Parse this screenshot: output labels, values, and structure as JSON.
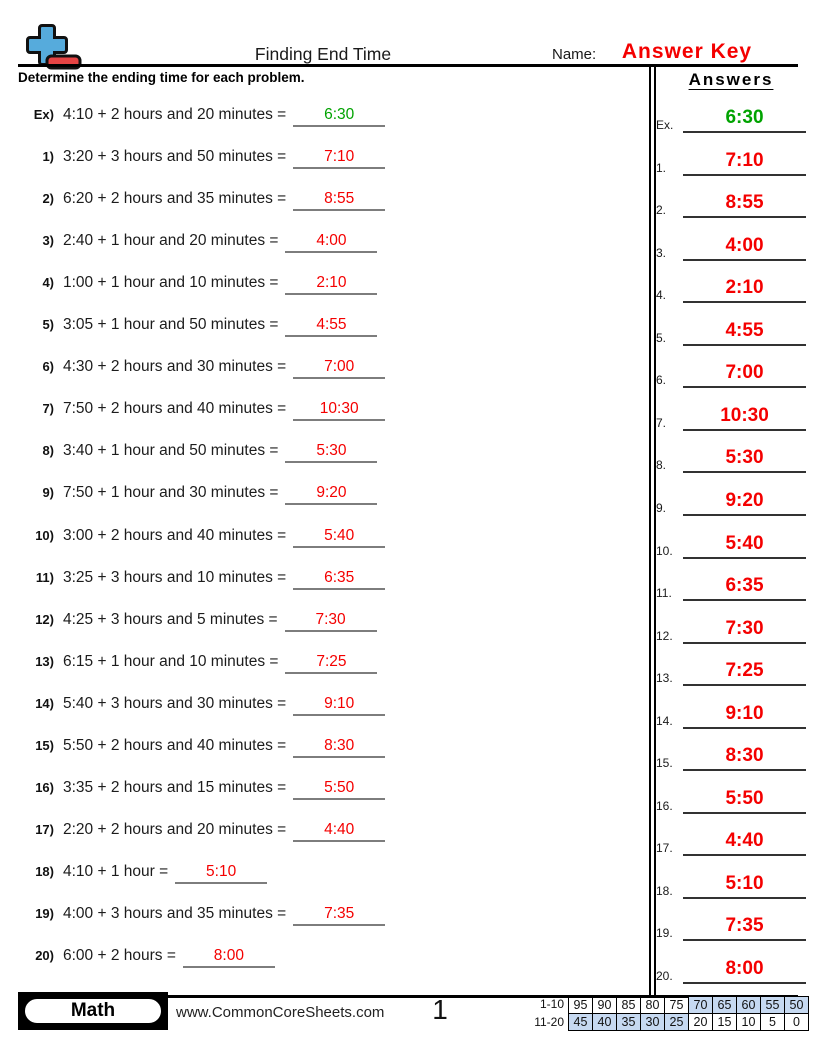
{
  "header": {
    "title": "Finding End Time",
    "name_label": "Name:",
    "name_value": "Answer Key",
    "instruction": "Determine the ending time for each problem.",
    "answers_title": "Answers"
  },
  "colors": {
    "answer_red": "#f40000",
    "answer_green": "#00a300",
    "name_value_red": "#f40000",
    "score_highlight_blue": "#c6d9f1",
    "logo_blue": "#56abdc",
    "logo_red": "#e64444"
  },
  "problems": [
    {
      "num": "Ex)",
      "key": "Ex.",
      "text": "4:10 + 2 hours and 20 minutes =",
      "answer": "6:30",
      "color": "green"
    },
    {
      "num": "1)",
      "key": "1.",
      "text": "3:20 + 3 hours and 50 minutes =",
      "answer": "7:10",
      "color": "red"
    },
    {
      "num": "2)",
      "key": "2.",
      "text": "6:20 + 2 hours and 35 minutes =",
      "answer": "8:55",
      "color": "red"
    },
    {
      "num": "3)",
      "key": "3.",
      "text": "2:40 + 1 hour and 20 minutes =",
      "answer": "4:00",
      "color": "red"
    },
    {
      "num": "4)",
      "key": "4.",
      "text": "1:00 + 1 hour and 10 minutes =",
      "answer": "2:10",
      "color": "red"
    },
    {
      "num": "5)",
      "key": "5.",
      "text": "3:05 + 1 hour and 50 minutes =",
      "answer": "4:55",
      "color": "red"
    },
    {
      "num": "6)",
      "key": "6.",
      "text": "4:30 + 2 hours and 30 minutes =",
      "answer": "7:00",
      "color": "red"
    },
    {
      "num": "7)",
      "key": "7.",
      "text": "7:50 + 2 hours and 40 minutes =",
      "answer": "10:30",
      "color": "red"
    },
    {
      "num": "8)",
      "key": "8.",
      "text": "3:40 + 1 hour and 50 minutes =",
      "answer": "5:30",
      "color": "red"
    },
    {
      "num": "9)",
      "key": "9.",
      "text": "7:50 + 1 hour and 30 minutes =",
      "answer": "9:20",
      "color": "red"
    },
    {
      "num": "10)",
      "key": "10.",
      "text": "3:00 + 2 hours and 40 minutes =",
      "answer": "5:40",
      "color": "red"
    },
    {
      "num": "11)",
      "key": "11.",
      "text": "3:25 + 3 hours and 10 minutes =",
      "answer": "6:35",
      "color": "red"
    },
    {
      "num": "12)",
      "key": "12.",
      "text": "4:25 + 3 hours and 5 minutes =",
      "answer": "7:30",
      "color": "red"
    },
    {
      "num": "13)",
      "key": "13.",
      "text": "6:15 + 1 hour and 10 minutes =",
      "answer": "7:25",
      "color": "red"
    },
    {
      "num": "14)",
      "key": "14.",
      "text": "5:40 + 3 hours and 30 minutes =",
      "answer": "9:10",
      "color": "red"
    },
    {
      "num": "15)",
      "key": "15.",
      "text": "5:50 + 2 hours and 40 minutes =",
      "answer": "8:30",
      "color": "red"
    },
    {
      "num": "16)",
      "key": "16.",
      "text": "3:35 + 2 hours and 15 minutes =",
      "answer": "5:50",
      "color": "red"
    },
    {
      "num": "17)",
      "key": "17.",
      "text": "2:20 + 2 hours and 20 minutes =",
      "answer": "4:40",
      "color": "red"
    },
    {
      "num": "18)",
      "key": "18.",
      "text": "4:10 + 1 hour =",
      "answer": "5:10",
      "color": "red"
    },
    {
      "num": "19)",
      "key": "19.",
      "text": "4:00 + 3 hours and 35 minutes =",
      "answer": "7:35",
      "color": "red"
    },
    {
      "num": "20)",
      "key": "20.",
      "text": "6:00 + 2 hours =",
      "answer": "8:00",
      "color": "red"
    }
  ],
  "footer": {
    "subject": "Math",
    "website": "www.CommonCoreSheets.com",
    "page": "1",
    "score_rows": [
      {
        "label": "1-10",
        "values": [
          "95",
          "90",
          "85",
          "80",
          "75",
          "70",
          "65",
          "60",
          "55",
          "50"
        ],
        "highlight": [
          false,
          false,
          false,
          false,
          false,
          true,
          true,
          true,
          true,
          true
        ]
      },
      {
        "label": "11-20",
        "values": [
          "45",
          "40",
          "35",
          "30",
          "25",
          "20",
          "15",
          "10",
          "5",
          "0"
        ],
        "highlight": [
          true,
          true,
          true,
          true,
          true,
          false,
          false,
          false,
          false,
          false
        ]
      }
    ]
  }
}
